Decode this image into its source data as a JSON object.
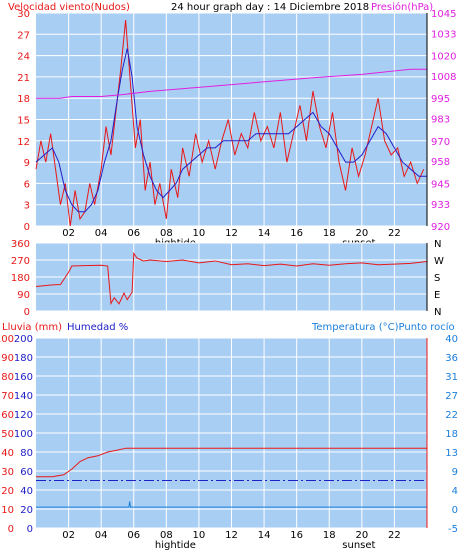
{
  "colors": {
    "plot_bg": "#a9cef3",
    "grid": "#ffffff",
    "red": "#e81818",
    "navy": "#2020c8",
    "magenta": "#e020e0",
    "blue": "#1a7fdc",
    "dark": "#000000"
  },
  "chart_data": [
    {
      "type": "line",
      "title": "24 hour graph day : 14 Diciembre 2018",
      "left_label": "Velocidad viento(Nudos)",
      "right_label": "Presión(hPa)",
      "xlim": [
        0,
        24
      ],
      "ylim": [
        0,
        30
      ],
      "y2lim": [
        920,
        1045
      ],
      "x_ticks": [
        "02",
        "04",
        "06",
        "08",
        "10",
        "12",
        "14",
        "16",
        "18",
        "20",
        "22"
      ],
      "y_ticks": [
        "0",
        "3",
        "6",
        "9",
        "12",
        "15",
        "18",
        "21",
        "24",
        "27",
        "30"
      ],
      "y2_ticks": [
        "920",
        "933",
        "945",
        "958",
        "970",
        "983",
        "995",
        "1008",
        "1020",
        "1033",
        "1045"
      ],
      "annotations": [
        "hightide",
        "sunset"
      ],
      "series": [
        {
          "values": [
            [
              0,
              8
            ],
            [
              0.3,
              12
            ],
            [
              0.6,
              9
            ],
            [
              0.9,
              13
            ],
            [
              1.2,
              8
            ],
            [
              1.5,
              3
            ],
            [
              1.8,
              6
            ],
            [
              2.1,
              0
            ],
            [
              2.4,
              5
            ],
            [
              2.7,
              1
            ],
            [
              3,
              2
            ],
            [
              3.3,
              6
            ],
            [
              3.6,
              3
            ],
            [
              4,
              8
            ],
            [
              4.3,
              14
            ],
            [
              4.6,
              10
            ],
            [
              4.9,
              16
            ],
            [
              5.2,
              22
            ],
            [
              5.5,
              29
            ],
            [
              5.8,
              20
            ],
            [
              6.1,
              11
            ],
            [
              6.4,
              15
            ],
            [
              6.7,
              5
            ],
            [
              7,
              9
            ],
            [
              7.3,
              3
            ],
            [
              7.6,
              6
            ],
            [
              8,
              1
            ],
            [
              8.3,
              8
            ],
            [
              8.7,
              4
            ],
            [
              9,
              11
            ],
            [
              9.4,
              7
            ],
            [
              9.8,
              13
            ],
            [
              10.2,
              9
            ],
            [
              10.6,
              12
            ],
            [
              11,
              8
            ],
            [
              11.4,
              12
            ],
            [
              11.8,
              15
            ],
            [
              12.2,
              10
            ],
            [
              12.6,
              13
            ],
            [
              13,
              11
            ],
            [
              13.4,
              16
            ],
            [
              13.8,
              12
            ],
            [
              14.2,
              14
            ],
            [
              14.6,
              11
            ],
            [
              15,
              16
            ],
            [
              15.4,
              9
            ],
            [
              15.8,
              13
            ],
            [
              16.2,
              17
            ],
            [
              16.6,
              12
            ],
            [
              17,
              19
            ],
            [
              17.4,
              14
            ],
            [
              17.8,
              11
            ],
            [
              18.2,
              16
            ],
            [
              18.6,
              9
            ],
            [
              19,
              5
            ],
            [
              19.4,
              11
            ],
            [
              19.8,
              7
            ],
            [
              20.2,
              10
            ],
            [
              20.6,
              14
            ],
            [
              21,
              18
            ],
            [
              21.4,
              12
            ],
            [
              21.8,
              10
            ],
            [
              22.2,
              11
            ],
            [
              22.6,
              7
            ],
            [
              23,
              9
            ],
            [
              23.4,
              6
            ],
            [
              23.8,
              8
            ]
          ]
        },
        {
          "values": [
            [
              0,
              9
            ],
            [
              0.5,
              10
            ],
            [
              1,
              11
            ],
            [
              1.4,
              9
            ],
            [
              1.8,
              5
            ],
            [
              2.2,
              3
            ],
            [
              2.6,
              2
            ],
            [
              3,
              2
            ],
            [
              3.4,
              3
            ],
            [
              3.8,
              5
            ],
            [
              4.2,
              9
            ],
            [
              4.6,
              12
            ],
            [
              5,
              18
            ],
            [
              5.3,
              22
            ],
            [
              5.6,
              25
            ],
            [
              5.9,
              21
            ],
            [
              6.2,
              14
            ],
            [
              6.6,
              10
            ],
            [
              7,
              7
            ],
            [
              7.4,
              5
            ],
            [
              7.8,
              4
            ],
            [
              8.2,
              5
            ],
            [
              8.6,
              6
            ],
            [
              9,
              8
            ],
            [
              9.5,
              9
            ],
            [
              10,
              10
            ],
            [
              10.5,
              11
            ],
            [
              11,
              11
            ],
            [
              11.5,
              12
            ],
            [
              12,
              12
            ],
            [
              12.5,
              12
            ],
            [
              13,
              12
            ],
            [
              13.5,
              13
            ],
            [
              14,
              13
            ],
            [
              14.5,
              13
            ],
            [
              15,
              13
            ],
            [
              15.5,
              13
            ],
            [
              16,
              14
            ],
            [
              16.5,
              15
            ],
            [
              17,
              16
            ],
            [
              17.5,
              14
            ],
            [
              18,
              13
            ],
            [
              18.5,
              11
            ],
            [
              19,
              9
            ],
            [
              19.5,
              9
            ],
            [
              20,
              10
            ],
            [
              20.5,
              12
            ],
            [
              21,
              14
            ],
            [
              21.5,
              13
            ],
            [
              22,
              11
            ],
            [
              22.5,
              9
            ],
            [
              23,
              8
            ],
            [
              23.5,
              7
            ],
            [
              24,
              7
            ]
          ]
        },
        {
          "values": [
            [
              0,
              995
            ],
            [
              1.5,
              995
            ],
            [
              2.2,
              996
            ],
            [
              4,
              996
            ],
            [
              5.2,
              997
            ],
            [
              7,
              999
            ],
            [
              9.5,
              1001
            ],
            [
              12,
              1003
            ],
            [
              14.5,
              1005
            ],
            [
              17,
              1007
            ],
            [
              20,
              1009
            ],
            [
              22,
              1011
            ],
            [
              23,
              1012
            ],
            [
              24,
              1012
            ]
          ]
        }
      ]
    },
    {
      "type": "line",
      "xlim": [
        0,
        24
      ],
      "ylim": [
        0,
        360
      ],
      "y_ticks": [
        "0",
        "90",
        "180",
        "270",
        "360"
      ],
      "right_tick_labels": [
        "N",
        "W",
        "S",
        "E",
        "N"
      ],
      "series": [
        {
          "values": [
            [
              0,
              130
            ],
            [
              1,
              138
            ],
            [
              1.5,
              140
            ],
            [
              2,
              205
            ],
            [
              2.2,
              238
            ],
            [
              3,
              240
            ],
            [
              4,
              242
            ],
            [
              4.4,
              238
            ],
            [
              4.6,
              40
            ],
            [
              4.8,
              70
            ],
            [
              5.1,
              38
            ],
            [
              5.4,
              95
            ],
            [
              5.6,
              60
            ],
            [
              5.9,
              100
            ],
            [
              6,
              305
            ],
            [
              6.2,
              280
            ],
            [
              6.6,
              265
            ],
            [
              7,
              270
            ],
            [
              8,
              262
            ],
            [
              9,
              270
            ],
            [
              10,
              255
            ],
            [
              11,
              265
            ],
            [
              12,
              245
            ],
            [
              13,
              250
            ],
            [
              14,
              240
            ],
            [
              15,
              248
            ],
            [
              16,
              238
            ],
            [
              17,
              250
            ],
            [
              18,
              242
            ],
            [
              19,
              250
            ],
            [
              20,
              255
            ],
            [
              21,
              245
            ],
            [
              22,
              248
            ],
            [
              23,
              252
            ],
            [
              24,
              262
            ]
          ]
        }
      ]
    },
    {
      "type": "line",
      "left_labels": [
        "Lluvia (mm)",
        "Humedad %"
      ],
      "right_label": "Temperatura (°C)Punto rocío",
      "xlim": [
        0,
        24
      ],
      "ylim": [
        0,
        100
      ],
      "y_ticks_left_outer": [
        "0",
        "10",
        "20",
        "30",
        "40",
        "50",
        "60",
        "70",
        "80",
        "90",
        "100"
      ],
      "y_ticks_left_inner": [
        "0",
        "20",
        "40",
        "60",
        "80",
        "100",
        "120",
        "140",
        "160",
        "180",
        "200"
      ],
      "y_ticks_right": [
        "-5",
        "0",
        "4",
        "9",
        "13",
        "18",
        "22",
        "27",
        "31",
        "36",
        "40"
      ],
      "series": [
        {
          "values": [
            [
              0,
              27
            ],
            [
              1,
              27
            ],
            [
              1.7,
              28
            ],
            [
              2.2,
              31
            ],
            [
              2.7,
              35
            ],
            [
              3.2,
              37
            ],
            [
              3.8,
              38
            ],
            [
              4.4,
              40
            ],
            [
              5,
              41
            ],
            [
              5.5,
              42
            ],
            [
              24,
              42
            ]
          ]
        },
        {
          "values": [
            [
              0,
              25
            ],
            [
              24,
              25
            ]
          ]
        },
        {
          "values": [
            [
              0,
              11
            ],
            [
              5.7,
              11
            ],
            [
              5.75,
              14
            ],
            [
              5.8,
              11
            ],
            [
              24,
              11
            ]
          ]
        }
      ]
    }
  ]
}
